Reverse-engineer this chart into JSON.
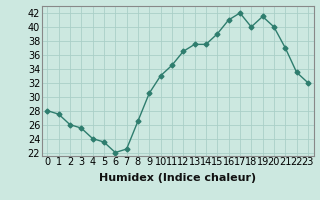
{
  "x": [
    0,
    1,
    2,
    3,
    4,
    5,
    6,
    7,
    8,
    9,
    10,
    11,
    12,
    13,
    14,
    15,
    16,
    17,
    18,
    19,
    20,
    21,
    22,
    23
  ],
  "y": [
    28,
    27.5,
    26,
    25.5,
    24,
    23.5,
    22,
    22.5,
    26.5,
    30.5,
    33,
    34.5,
    36.5,
    37.5,
    37.5,
    39,
    41,
    42,
    40,
    41.5,
    40,
    37,
    33.5,
    32
  ],
  "line_color": "#2e7d6e",
  "marker": "D",
  "marker_size": 2.5,
  "background_color": "#cce8e0",
  "grid_color": "#aacfc7",
  "xlabel": "Humidex (Indice chaleur)",
  "xlabel_fontsize": 8,
  "ylim": [
    21.5,
    43
  ],
  "xlim": [
    -0.5,
    23.5
  ],
  "yticks": [
    22,
    24,
    26,
    28,
    30,
    32,
    34,
    36,
    38,
    40,
    42
  ],
  "xtick_labels": [
    "0",
    "1",
    "2",
    "3",
    "4",
    "5",
    "6",
    "7",
    "8",
    "9",
    "10",
    "11",
    "12",
    "13",
    "14",
    "15",
    "16",
    "17",
    "18",
    "19",
    "20",
    "21",
    "22",
    "23"
  ],
  "tick_fontsize": 7,
  "line_width": 1.0,
  "spine_color": "#888888"
}
